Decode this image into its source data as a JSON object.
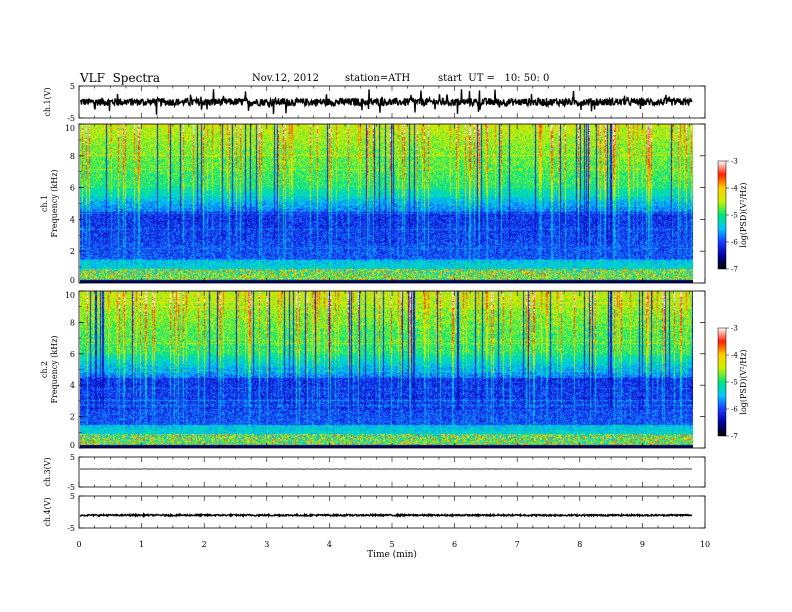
{
  "header": {
    "title": "VLF  Spectra",
    "date": "Nov.12, 2012",
    "station": "station=ATH",
    "start": "start  UT =   10: 50: 0"
  },
  "chart_data": {
    "type": "heatmap",
    "x_axis": {
      "label": "Time  (min)",
      "range": [
        0,
        10
      ],
      "ticks": [
        0,
        1,
        2,
        3,
        4,
        5,
        6,
        7,
        8,
        9,
        10
      ],
      "data_end": 9.8
    },
    "panels": [
      {
        "kind": "timeseries",
        "ylabel": "ch.1(V)",
        "ylim": [
          -5,
          5
        ],
        "yticks": [
          "5",
          "-5"
        ],
        "baseline": 0,
        "noise_amplitude": 1.2,
        "spike_amplitude": 4
      },
      {
        "kind": "spectrogram",
        "ylabel_channel": "ch.1",
        "ylabel": "Frequency  (kHz)",
        "ylim": [
          0,
          10
        ],
        "yticks": [
          "0",
          "2",
          "4",
          "6",
          "8",
          "10"
        ],
        "colorbar": {
          "label": "log(PSD)(V²/Hz)",
          "range": [
            -7,
            -3
          ],
          "ticks": [
            "-3",
            "-4",
            "-5",
            "-6",
            "-7"
          ]
        }
      },
      {
        "kind": "spectrogram",
        "ylabel_channel": "ch.2",
        "ylabel": "Frequency  (kHz)",
        "ylim": [
          0,
          10
        ],
        "yticks": [
          "0",
          "2",
          "4",
          "6",
          "8",
          "10"
        ],
        "colorbar": {
          "label": "log(PSD)(V²/Hz)",
          "range": [
            -7,
            -3
          ],
          "ticks": [
            "-3",
            "-4",
            "-5",
            "-6",
            "-7"
          ]
        }
      },
      {
        "kind": "timeseries",
        "ylabel": "ch.3(V)",
        "ylim": [
          -5,
          5
        ],
        "yticks": [
          "5",
          "-5"
        ],
        "baseline": 1.0,
        "noise_amplitude": 0.05,
        "spike_amplitude": 0
      },
      {
        "kind": "timeseries",
        "ylabel": "ch.4(V)",
        "ylim": [
          -5,
          5
        ],
        "yticks": [
          "5",
          "-5"
        ],
        "baseline": -1.0,
        "noise_amplitude": 0.25,
        "spike_amplitude": 0
      }
    ],
    "colormap": [
      "#000000",
      "#0000a0",
      "#1c3cff",
      "#00c8ff",
      "#00e87a",
      "#c8f000",
      "#ffd000",
      "#ff2000",
      "#ffffff"
    ]
  }
}
